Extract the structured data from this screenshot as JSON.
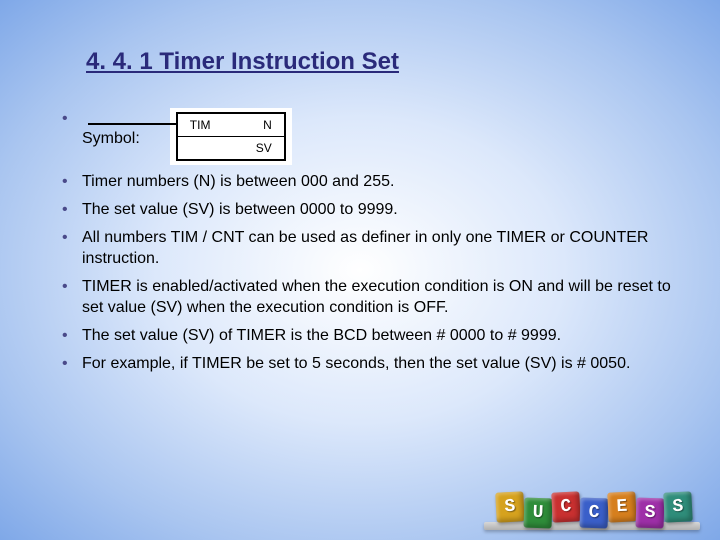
{
  "title": "4. 4. 1 Timer Instruction Set",
  "symbol": {
    "label": "Symbol:",
    "tim": "TIM",
    "n": "N",
    "sv": "SV"
  },
  "bullets": [
    "Timer numbers (N) is between 000 and 255.",
    "The set value (SV) is between 0000 to 9999.",
    "All numbers TIM / CNT can be used as definer in only one TIMER or COUNTER instruction.",
    "TIMER is enabled/activated when the execution condition is ON and will be reset to set value (SV) when the execution condition is OFF.",
    "The set value (SV) of TIMER is the BCD between # 0000 to # 9999.",
    "For example, if TIMER be set to 5 seconds, then the set value (SV) is # 0050."
  ],
  "success": {
    "letters": [
      "S",
      "U",
      "C",
      "C",
      "E",
      "S",
      "S"
    ],
    "colors": [
      "#d6a21e",
      "#2f8d3a",
      "#c93030",
      "#3a5fc9",
      "#d67f1e",
      "#9e2fa8",
      "#2f8d7a"
    ]
  }
}
